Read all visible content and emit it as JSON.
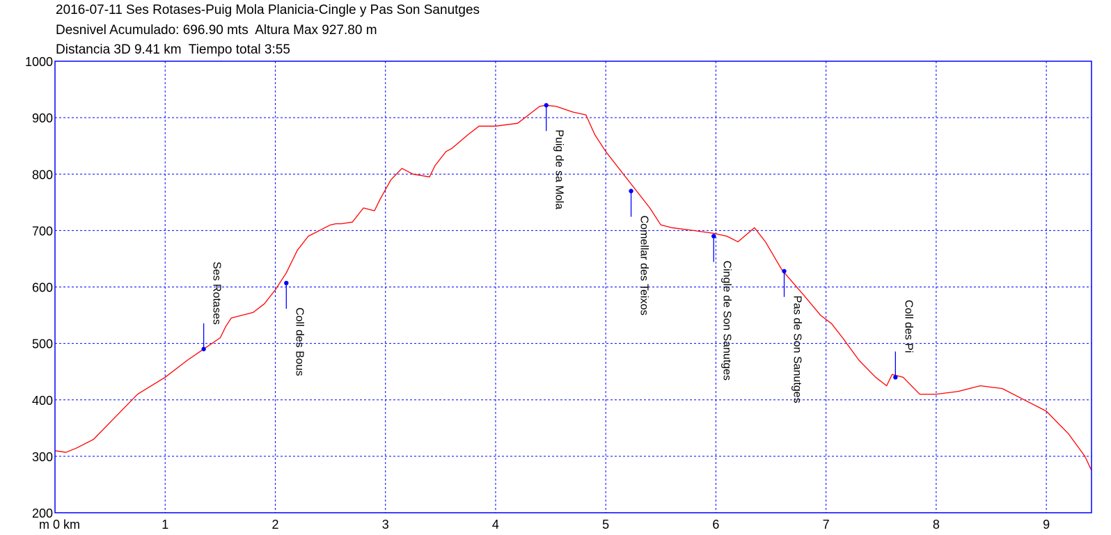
{
  "header": {
    "line1": "2016-07-11 Ses Rotases-Puig Mola Planicia-Cingle y Pas Son Sanutges",
    "line2": "Desnivel Acumulado: 696.90 mts  Altura Max 927.80 m",
    "line3": "Distancia 3D 9.41 km  Tiempo total 3:55"
  },
  "colors": {
    "frame": "#0000ff",
    "grid": "#0000ff",
    "profile": "#ff0000",
    "marker": "#0000ff"
  },
  "chart_data": {
    "type": "line",
    "xlim": [
      0,
      9.41
    ],
    "ylim": [
      200,
      1000
    ],
    "grid": true,
    "y_ticks": [
      {
        "value": 200,
        "label": "200"
      },
      {
        "value": 300,
        "label": "300"
      },
      {
        "value": 400,
        "label": "400"
      },
      {
        "value": 500,
        "label": "500"
      },
      {
        "value": 600,
        "label": "600"
      },
      {
        "value": 700,
        "label": "700"
      },
      {
        "value": 800,
        "label": "800"
      },
      {
        "value": 900,
        "label": "900"
      },
      {
        "value": 1000,
        "label": "1000"
      }
    ],
    "x_ticks": [
      {
        "value": 0,
        "label": "m 0 km"
      },
      {
        "value": 1,
        "label": "1"
      },
      {
        "value": 2,
        "label": "2"
      },
      {
        "value": 3,
        "label": "3"
      },
      {
        "value": 4,
        "label": "4"
      },
      {
        "value": 5,
        "label": "5"
      },
      {
        "value": 6,
        "label": "6"
      },
      {
        "value": 7,
        "label": "7"
      },
      {
        "value": 8,
        "label": "8"
      },
      {
        "value": 9,
        "label": "9"
      }
    ],
    "series": [
      {
        "x": [
          0,
          0.1,
          0.2,
          0.35,
          0.55,
          0.75,
          1.0,
          1.2,
          1.35,
          1.5,
          1.55,
          1.6,
          1.8,
          1.9,
          2.0,
          2.1,
          2.2,
          2.3,
          2.4,
          2.45,
          2.5,
          2.55,
          2.6,
          2.7,
          2.8,
          2.9,
          2.95,
          3.05,
          3.15,
          3.25,
          3.4,
          3.45,
          3.55,
          3.6,
          3.75,
          3.85,
          4.0,
          4.2,
          4.3,
          4.4,
          4.46,
          4.55,
          4.7,
          4.82,
          4.9,
          5.0,
          5.1,
          5.2,
          5.3,
          5.4,
          5.5,
          5.6,
          5.8,
          5.98,
          6.1,
          6.2,
          6.35,
          6.45,
          6.6,
          6.8,
          6.95,
          7.05,
          7.15,
          7.3,
          7.45,
          7.55,
          7.6,
          7.7,
          7.85,
          8.0,
          8.2,
          8.4,
          8.6,
          8.8,
          9.0,
          9.2,
          9.35,
          9.41
        ],
        "y": [
          310,
          307,
          315,
          330,
          370,
          410,
          440,
          470,
          490,
          510,
          530,
          545,
          555,
          570,
          595,
          625,
          665,
          690,
          700,
          705,
          710,
          712,
          712,
          715,
          740,
          735,
          755,
          790,
          810,
          800,
          795,
          815,
          840,
          845,
          870,
          885,
          885,
          890,
          905,
          920,
          922,
          920,
          910,
          905,
          870,
          840,
          815,
          790,
          765,
          740,
          710,
          705,
          700,
          695,
          690,
          680,
          705,
          680,
          630,
          585,
          550,
          535,
          510,
          470,
          440,
          425,
          445,
          440,
          410,
          410,
          415,
          425,
          420,
          400,
          380,
          340,
          300,
          275
        ]
      }
    ],
    "waypoints": [
      {
        "name": "Ses Rotases",
        "x": 1.35,
        "y": 490,
        "side": "above"
      },
      {
        "name": "Coll des Bous",
        "x": 2.1,
        "y": 607,
        "side": "below"
      },
      {
        "name": "Puig de sa Mola",
        "x": 4.46,
        "y": 922,
        "side": "below"
      },
      {
        "name": "Comellar des Teixos",
        "x": 5.23,
        "y": 770,
        "side": "below"
      },
      {
        "name": "Cingle de Son Sanutges",
        "x": 5.98,
        "y": 690,
        "side": "below"
      },
      {
        "name": "Pas de Son Sanutges",
        "x": 6.62,
        "y": 628,
        "side": "below"
      },
      {
        "name": "Coll des Pi",
        "x": 7.63,
        "y": 440,
        "side": "above"
      }
    ]
  }
}
